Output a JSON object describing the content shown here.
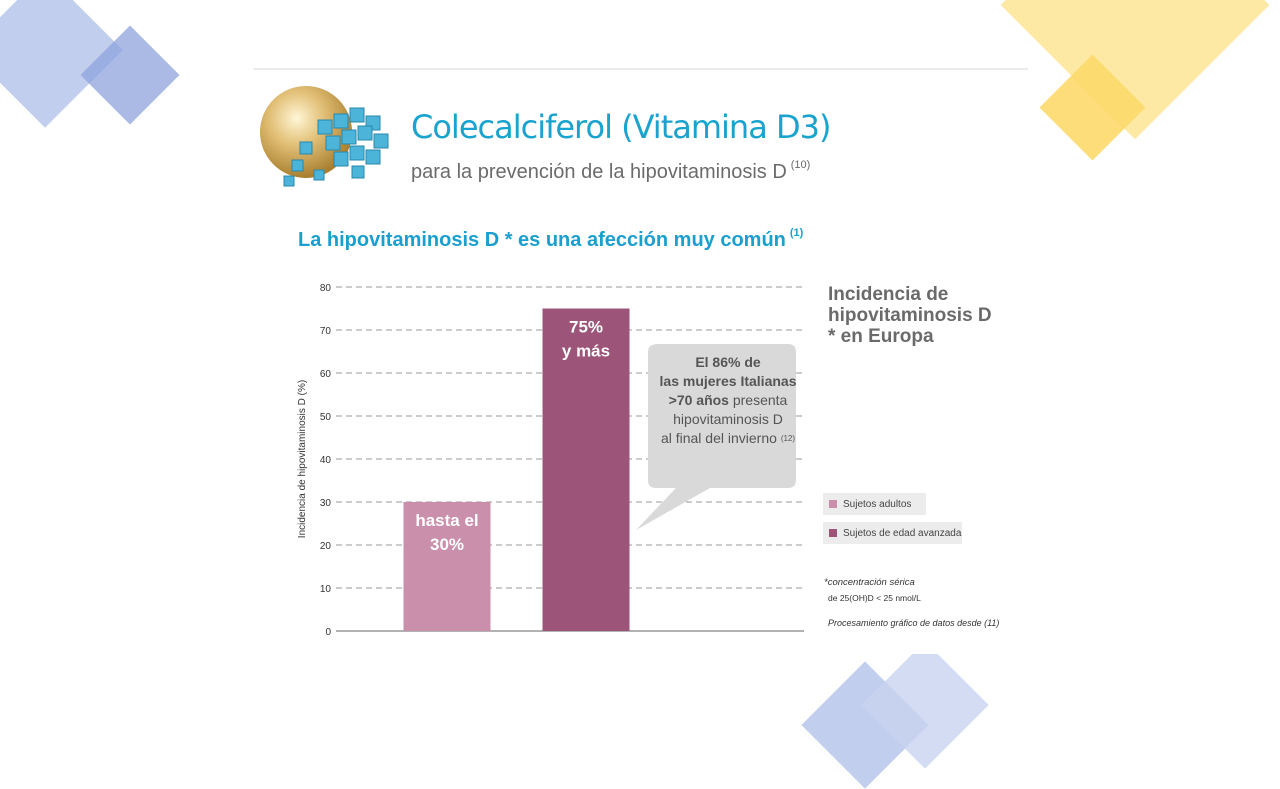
{
  "header": {
    "title": "Colecalciferol (Vitamina D3)",
    "subtitle": "para la prevención de la hipovitaminosis D",
    "subtitle_ref": "(10)"
  },
  "section": {
    "heading": "La hipovitaminosis D * es una afección muy común",
    "heading_ref": "(1)"
  },
  "legend": {
    "title_lines": [
      "Incidencia de",
      "hipovitaminosis D",
      "* en Europa"
    ],
    "items": [
      {
        "label": "Sujetos adultos",
        "color": "#c98fab"
      },
      {
        "label": "Sujetos de edad avanzada",
        "color": "#9c5478"
      }
    ]
  },
  "callout": {
    "line1": "El 86% de",
    "line2": "las mujeres Italianas",
    "line3_bold": ">70 años",
    "line3_rest": " presenta",
    "line4": "hipovitaminosis D",
    "line5": "al final del invierno",
    "ref": "(12)"
  },
  "notes": {
    "footnote_1": "*concentración sérica",
    "footnote_2": "de 25(OH)D < 25 nmol/L",
    "source": "Procesamiento gráfico de datos desde (11)"
  },
  "colors": {
    "accent": "#19a3cf",
    "adults": "#c98fab",
    "elderly": "#9c5478",
    "deco_blue": "#b7c6ea",
    "deco_yellow": "#fde79a"
  },
  "chart_data": {
    "type": "bar",
    "categories": [
      "Sujetos adultos",
      "Sujetos de edad avanzada"
    ],
    "values": [
      30,
      75
    ],
    "bar_labels": [
      [
        "hasta el",
        "30%"
      ],
      [
        "75%",
        "y más"
      ]
    ],
    "ylabel": "Incidencia de hipovitaminosis D (%)",
    "xlabel": "",
    "ylim": [
      0,
      80
    ],
    "yticks": [
      0,
      10,
      20,
      30,
      40,
      50,
      60,
      70,
      80
    ],
    "grid": true
  }
}
